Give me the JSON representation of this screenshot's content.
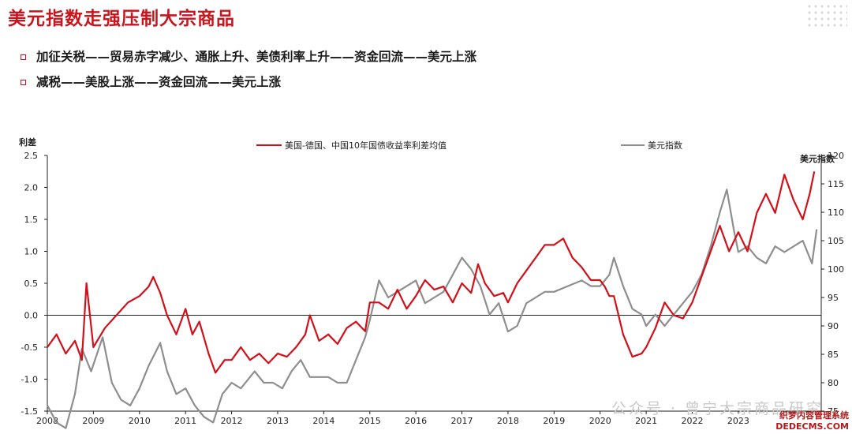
{
  "slide": {
    "title": "美元指数走强压制大宗商品",
    "bullets": [
      "加征关税——贸易赤字减少、通胀上升、美债利率上升——资金回流——美元上涨",
      "减税——美股上涨——资金回流——美元上涨"
    ]
  },
  "watermark": "公众号 · 曾宁大宗商品研究",
  "site_mark": [
    "织梦内容管理系统",
    "DEDECMS.COM"
  ],
  "colors": {
    "accent": "#c8161d",
    "spread": "#d2101a",
    "usd": "#8e8e8e",
    "axis": "#222222"
  },
  "chart_data": {
    "type": "line",
    "title": "",
    "ylabel_left": "利差",
    "ylabel_right": "美元指数",
    "ylim_left": [
      -1.5,
      2.5
    ],
    "ylim_right": [
      75,
      120
    ],
    "yticks_left": [
      "2.5",
      "2.0",
      "1.5",
      "1.0",
      "0.5",
      "0.0",
      "-0.5",
      "-1.0",
      "-1.5"
    ],
    "yticks_right": [
      "120",
      "115",
      "110",
      "105",
      "100",
      "95",
      "90",
      "85",
      "80",
      "75"
    ],
    "xlim": [
      2008.0,
      2024.8
    ],
    "xticks": [
      "2008",
      "2009",
      "2010",
      "2011",
      "2012",
      "2013",
      "2014",
      "2015",
      "2016",
      "2017",
      "2018",
      "2019",
      "2020",
      "2021",
      "2022",
      "2023"
    ],
    "legend_position": "top",
    "series": [
      {
        "name": "美国-德国、中国10年国债收益率利差均值",
        "axis": "left",
        "x": [
          2008.0,
          2008.2,
          2008.4,
          2008.6,
          2008.75,
          2008.85,
          2009.0,
          2009.25,
          2009.5,
          2009.75,
          2010.0,
          2010.2,
          2010.3,
          2010.45,
          2010.6,
          2010.8,
          2011.0,
          2011.15,
          2011.3,
          2011.5,
          2011.65,
          2011.85,
          2012.0,
          2012.2,
          2012.4,
          2012.6,
          2012.8,
          2013.0,
          2013.2,
          2013.4,
          2013.6,
          2013.7,
          2013.9,
          2014.1,
          2014.3,
          2014.5,
          2014.7,
          2014.9,
          2015.0,
          2015.2,
          2015.4,
          2015.6,
          2015.8,
          2016.0,
          2016.2,
          2016.4,
          2016.6,
          2016.8,
          2017.0,
          2017.2,
          2017.35,
          2017.5,
          2017.7,
          2017.9,
          2018.0,
          2018.2,
          2018.4,
          2018.6,
          2018.8,
          2019.0,
          2019.2,
          2019.4,
          2019.6,
          2019.8,
          2020.0,
          2020.1,
          2020.2,
          2020.3,
          2020.5,
          2020.7,
          2020.9,
          2021.0,
          2021.2,
          2021.4,
          2021.6,
          2021.8,
          2022.0,
          2022.2,
          2022.4,
          2022.6,
          2022.8,
          2023.0,
          2023.2,
          2023.4,
          2023.6,
          2023.8,
          2024.0,
          2024.2,
          2024.4,
          2024.55,
          2024.65
        ],
        "y": [
          -0.5,
          -0.3,
          -0.6,
          -0.4,
          -0.7,
          0.5,
          -0.5,
          -0.2,
          0.0,
          0.2,
          0.3,
          0.45,
          0.6,
          0.35,
          0.0,
          -0.3,
          0.1,
          -0.3,
          -0.1,
          -0.6,
          -0.9,
          -0.7,
          -0.7,
          -0.5,
          -0.7,
          -0.6,
          -0.75,
          -0.6,
          -0.65,
          -0.5,
          -0.3,
          0.0,
          -0.4,
          -0.3,
          -0.45,
          -0.2,
          -0.1,
          -0.25,
          0.2,
          0.2,
          0.1,
          0.4,
          0.1,
          0.3,
          0.55,
          0.4,
          0.45,
          0.2,
          0.5,
          0.35,
          0.8,
          0.5,
          0.3,
          0.35,
          0.2,
          0.5,
          0.7,
          0.9,
          1.1,
          1.1,
          1.2,
          0.9,
          0.75,
          0.55,
          0.55,
          0.45,
          0.3,
          0.3,
          -0.3,
          -0.65,
          -0.6,
          -0.5,
          -0.2,
          0.2,
          0.0,
          -0.05,
          0.2,
          0.6,
          1.0,
          1.4,
          1.0,
          1.3,
          1.0,
          1.6,
          1.9,
          1.6,
          2.2,
          1.8,
          1.5,
          1.9,
          2.25
        ]
      },
      {
        "name": "美元指数",
        "axis": "right",
        "x": [
          2008.0,
          2008.2,
          2008.4,
          2008.6,
          2008.75,
          2008.95,
          2009.2,
          2009.4,
          2009.6,
          2009.8,
          2010.0,
          2010.2,
          2010.45,
          2010.6,
          2010.8,
          2011.0,
          2011.2,
          2011.4,
          2011.6,
          2011.8,
          2012.0,
          2012.2,
          2012.5,
          2012.7,
          2012.9,
          2013.1,
          2013.3,
          2013.5,
          2013.7,
          2013.9,
          2014.1,
          2014.3,
          2014.5,
          2014.7,
          2014.9,
          2015.0,
          2015.2,
          2015.4,
          2015.6,
          2015.8,
          2016.0,
          2016.2,
          2016.4,
          2016.6,
          2016.8,
          2017.0,
          2017.2,
          2017.4,
          2017.6,
          2017.8,
          2018.0,
          2018.2,
          2018.4,
          2018.6,
          2018.8,
          2019.0,
          2019.3,
          2019.6,
          2019.8,
          2020.0,
          2020.2,
          2020.3,
          2020.5,
          2020.7,
          2020.9,
          2021.0,
          2021.2,
          2021.4,
          2021.6,
          2021.8,
          2022.0,
          2022.2,
          2022.4,
          2022.6,
          2022.75,
          2022.9,
          2023.0,
          2023.2,
          2023.4,
          2023.6,
          2023.8,
          2024.0,
          2024.2,
          2024.4,
          2024.6,
          2024.7
        ],
        "y": [
          76,
          73,
          72,
          78,
          86,
          82,
          88,
          80,
          77,
          76,
          79,
          83,
          87,
          82,
          78,
          79,
          76,
          74,
          73,
          78,
          80,
          79,
          82,
          80,
          80,
          79,
          82,
          84,
          81,
          81,
          81,
          80,
          80,
          84,
          88,
          91,
          98,
          95,
          96,
          97,
          98,
          94,
          95,
          96,
          99,
          102,
          100,
          97,
          92,
          94,
          89,
          90,
          94,
          95,
          96,
          96,
          97,
          98,
          97,
          97,
          99,
          102,
          97,
          93,
          92,
          90,
          92,
          90,
          92,
          94,
          96,
          99,
          104,
          110,
          114,
          107,
          103,
          104,
          102,
          101,
          104,
          103,
          104,
          105,
          101,
          107
        ]
      }
    ]
  }
}
